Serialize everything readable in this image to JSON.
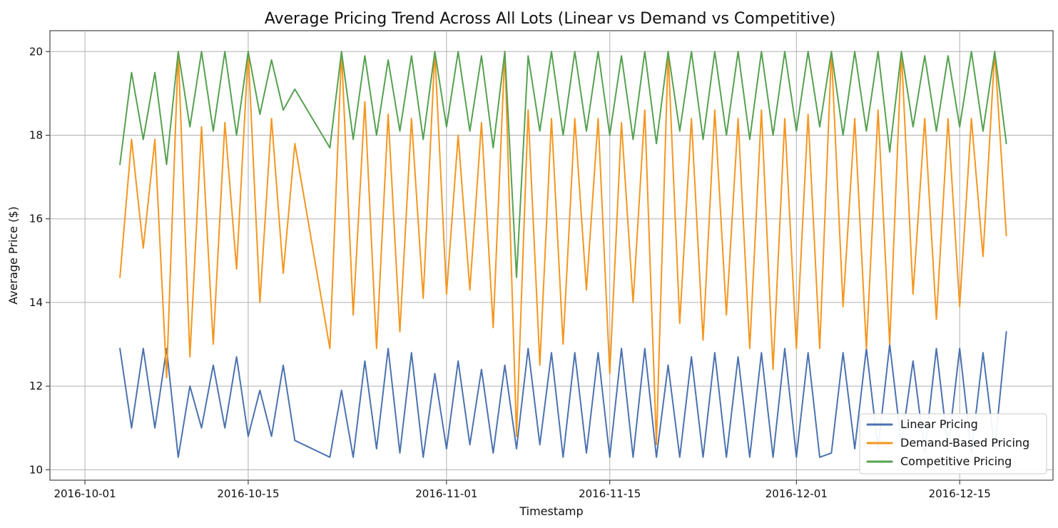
{
  "chart_data": {
    "type": "line",
    "title": "Average Pricing Trend Across All Lots (Linear vs Demand vs Competitive)",
    "xlabel": "Timestamp",
    "ylabel": "Average Price ($)",
    "x_ticks": [
      "2016-10-01",
      "2016-10-15",
      "2016-11-01",
      "2016-11-15",
      "2016-12-01",
      "2016-12-15"
    ],
    "y_ticks": [
      10,
      12,
      14,
      16,
      18,
      20
    ],
    "xlim": [
      "2016-09-28",
      "2016-12-23"
    ],
    "ylim": [
      9.75,
      20.5
    ],
    "grid": true,
    "legend_position": "bottom-right",
    "series": [
      {
        "name": "Linear Pricing",
        "color": "#4c72b0",
        "x": [
          "2016-10-04",
          "2016-10-05",
          "2016-10-06",
          "2016-10-07",
          "2016-10-08",
          "2016-10-09",
          "2016-10-10",
          "2016-10-11",
          "2016-10-12",
          "2016-10-13",
          "2016-10-14",
          "2016-10-15",
          "2016-10-16",
          "2016-10-17",
          "2016-10-18",
          "2016-10-19",
          "2016-10-22",
          "2016-10-23",
          "2016-10-24",
          "2016-10-25",
          "2016-10-26",
          "2016-10-27",
          "2016-10-28",
          "2016-10-29",
          "2016-10-30",
          "2016-10-31",
          "2016-11-01",
          "2016-11-02",
          "2016-11-03",
          "2016-11-04",
          "2016-11-05",
          "2016-11-06",
          "2016-11-07",
          "2016-11-08",
          "2016-11-09",
          "2016-11-10",
          "2016-11-11",
          "2016-11-12",
          "2016-11-13",
          "2016-11-14",
          "2016-11-15",
          "2016-11-16",
          "2016-11-17",
          "2016-11-18",
          "2016-11-19",
          "2016-11-20",
          "2016-11-21",
          "2016-11-22",
          "2016-11-23",
          "2016-11-24",
          "2016-11-25",
          "2016-11-26",
          "2016-11-27",
          "2016-11-28",
          "2016-11-29",
          "2016-11-30",
          "2016-12-01",
          "2016-12-02",
          "2016-12-03",
          "2016-12-04",
          "2016-12-05",
          "2016-12-06",
          "2016-12-07",
          "2016-12-08",
          "2016-12-09",
          "2016-12-10",
          "2016-12-11",
          "2016-12-12",
          "2016-12-13",
          "2016-12-14",
          "2016-12-15",
          "2016-12-16",
          "2016-12-17",
          "2016-12-18",
          "2016-12-19"
        ],
        "values": [
          12.9,
          11.0,
          12.9,
          11.0,
          12.9,
          10.3,
          12.0,
          11.0,
          12.5,
          11.0,
          12.7,
          10.8,
          11.9,
          10.8,
          12.5,
          10.7,
          10.3,
          11.9,
          10.3,
          12.6,
          10.5,
          12.9,
          10.4,
          12.8,
          10.3,
          12.3,
          10.5,
          12.6,
          10.6,
          12.4,
          10.4,
          12.5,
          10.5,
          12.9,
          10.6,
          12.8,
          10.3,
          12.8,
          10.4,
          12.8,
          10.3,
          12.9,
          10.3,
          12.9,
          10.3,
          12.5,
          10.3,
          12.7,
          10.3,
          12.8,
          10.3,
          12.7,
          10.3,
          12.8,
          10.3,
          12.9,
          10.3,
          12.8,
          10.3,
          10.4,
          12.8,
          10.5,
          12.9,
          10.5,
          13.0,
          10.6,
          12.6,
          10.4,
          12.9,
          10.5,
          12.9,
          10.4,
          12.8,
          10.5,
          13.3
        ]
      },
      {
        "name": "Demand-Based Pricing",
        "color": "#f5961f",
        "x": [
          "2016-10-04",
          "2016-10-05",
          "2016-10-06",
          "2016-10-07",
          "2016-10-08",
          "2016-10-09",
          "2016-10-10",
          "2016-10-11",
          "2016-10-12",
          "2016-10-13",
          "2016-10-14",
          "2016-10-15",
          "2016-10-16",
          "2016-10-17",
          "2016-10-18",
          "2016-10-19",
          "2016-10-22",
          "2016-10-23",
          "2016-10-24",
          "2016-10-25",
          "2016-10-26",
          "2016-10-27",
          "2016-10-28",
          "2016-10-29",
          "2016-10-30",
          "2016-10-31",
          "2016-11-01",
          "2016-11-02",
          "2016-11-03",
          "2016-11-04",
          "2016-11-05",
          "2016-11-06",
          "2016-11-07",
          "2016-11-08",
          "2016-11-09",
          "2016-11-10",
          "2016-11-11",
          "2016-11-12",
          "2016-11-13",
          "2016-11-14",
          "2016-11-15",
          "2016-11-16",
          "2016-11-17",
          "2016-11-18",
          "2016-11-19",
          "2016-11-20",
          "2016-11-21",
          "2016-11-22",
          "2016-11-23",
          "2016-11-24",
          "2016-11-25",
          "2016-11-26",
          "2016-11-27",
          "2016-11-28",
          "2016-11-29",
          "2016-11-30",
          "2016-12-01",
          "2016-12-02",
          "2016-12-03",
          "2016-12-04",
          "2016-12-05",
          "2016-12-06",
          "2016-12-07",
          "2016-12-08",
          "2016-12-09",
          "2016-12-10",
          "2016-12-11",
          "2016-12-12",
          "2016-12-13",
          "2016-12-14",
          "2016-12-15",
          "2016-12-16",
          "2016-12-17",
          "2016-12-18",
          "2016-12-19"
        ],
        "values": [
          14.6,
          17.9,
          15.3,
          17.9,
          12.2,
          20.0,
          12.7,
          18.2,
          13.0,
          18.3,
          14.8,
          20.0,
          14.0,
          18.4,
          14.7,
          17.8,
          12.9,
          20.0,
          13.7,
          18.8,
          12.9,
          18.5,
          13.3,
          18.4,
          14.1,
          20.0,
          14.2,
          18.0,
          14.3,
          18.3,
          13.4,
          20.0,
          10.8,
          18.6,
          12.5,
          18.4,
          13.0,
          18.4,
          14.3,
          18.4,
          12.3,
          18.3,
          14.0,
          18.6,
          10.6,
          20.0,
          13.5,
          18.4,
          13.1,
          18.6,
          13.7,
          18.4,
          12.9,
          18.6,
          12.4,
          18.4,
          12.9,
          18.5,
          12.9,
          20.0,
          13.9,
          18.4,
          12.9,
          18.6,
          13.0,
          20.0,
          14.2,
          18.4,
          13.6,
          18.4,
          13.9,
          18.4,
          15.1,
          20.0,
          15.6
        ]
      },
      {
        "name": "Competitive Pricing",
        "color": "#55a150",
        "x": [
          "2016-10-04",
          "2016-10-05",
          "2016-10-06",
          "2016-10-07",
          "2016-10-08",
          "2016-10-09",
          "2016-10-10",
          "2016-10-11",
          "2016-10-12",
          "2016-10-13",
          "2016-10-14",
          "2016-10-15",
          "2016-10-16",
          "2016-10-17",
          "2016-10-18",
          "2016-10-19",
          "2016-10-22",
          "2016-10-23",
          "2016-10-24",
          "2016-10-25",
          "2016-10-26",
          "2016-10-27",
          "2016-10-28",
          "2016-10-29",
          "2016-10-30",
          "2016-10-31",
          "2016-11-01",
          "2016-11-02",
          "2016-11-03",
          "2016-11-04",
          "2016-11-05",
          "2016-11-06",
          "2016-11-07",
          "2016-11-08",
          "2016-11-09",
          "2016-11-10",
          "2016-11-11",
          "2016-11-12",
          "2016-11-13",
          "2016-11-14",
          "2016-11-15",
          "2016-11-16",
          "2016-11-17",
          "2016-11-18",
          "2016-11-19",
          "2016-11-20",
          "2016-11-21",
          "2016-11-22",
          "2016-11-23",
          "2016-11-24",
          "2016-11-25",
          "2016-11-26",
          "2016-11-27",
          "2016-11-28",
          "2016-11-29",
          "2016-11-30",
          "2016-12-01",
          "2016-12-02",
          "2016-12-03",
          "2016-12-04",
          "2016-12-05",
          "2016-12-06",
          "2016-12-07",
          "2016-12-08",
          "2016-12-09",
          "2016-12-10",
          "2016-12-11",
          "2016-12-12",
          "2016-12-13",
          "2016-12-14",
          "2016-12-15",
          "2016-12-16",
          "2016-12-17",
          "2016-12-18",
          "2016-12-19"
        ],
        "values": [
          17.3,
          19.5,
          17.9,
          19.5,
          17.3,
          20.0,
          18.2,
          20.0,
          18.1,
          20.0,
          18.0,
          20.0,
          18.5,
          19.8,
          18.6,
          19.1,
          17.7,
          20.0,
          17.9,
          19.9,
          18.0,
          19.8,
          18.1,
          19.9,
          17.9,
          20.0,
          18.2,
          20.0,
          18.1,
          19.9,
          17.7,
          20.0,
          14.6,
          19.9,
          18.1,
          20.0,
          18.0,
          20.0,
          18.1,
          20.0,
          18.0,
          19.9,
          17.9,
          20.0,
          17.8,
          20.0,
          18.1,
          20.0,
          17.9,
          20.0,
          18.0,
          20.0,
          17.9,
          20.0,
          18.0,
          20.0,
          18.1,
          20.0,
          18.2,
          20.0,
          18.0,
          20.0,
          18.1,
          20.0,
          17.6,
          20.0,
          18.2,
          19.9,
          18.1,
          19.9,
          18.2,
          20.0,
          18.1,
          20.0,
          17.8
        ]
      }
    ]
  }
}
